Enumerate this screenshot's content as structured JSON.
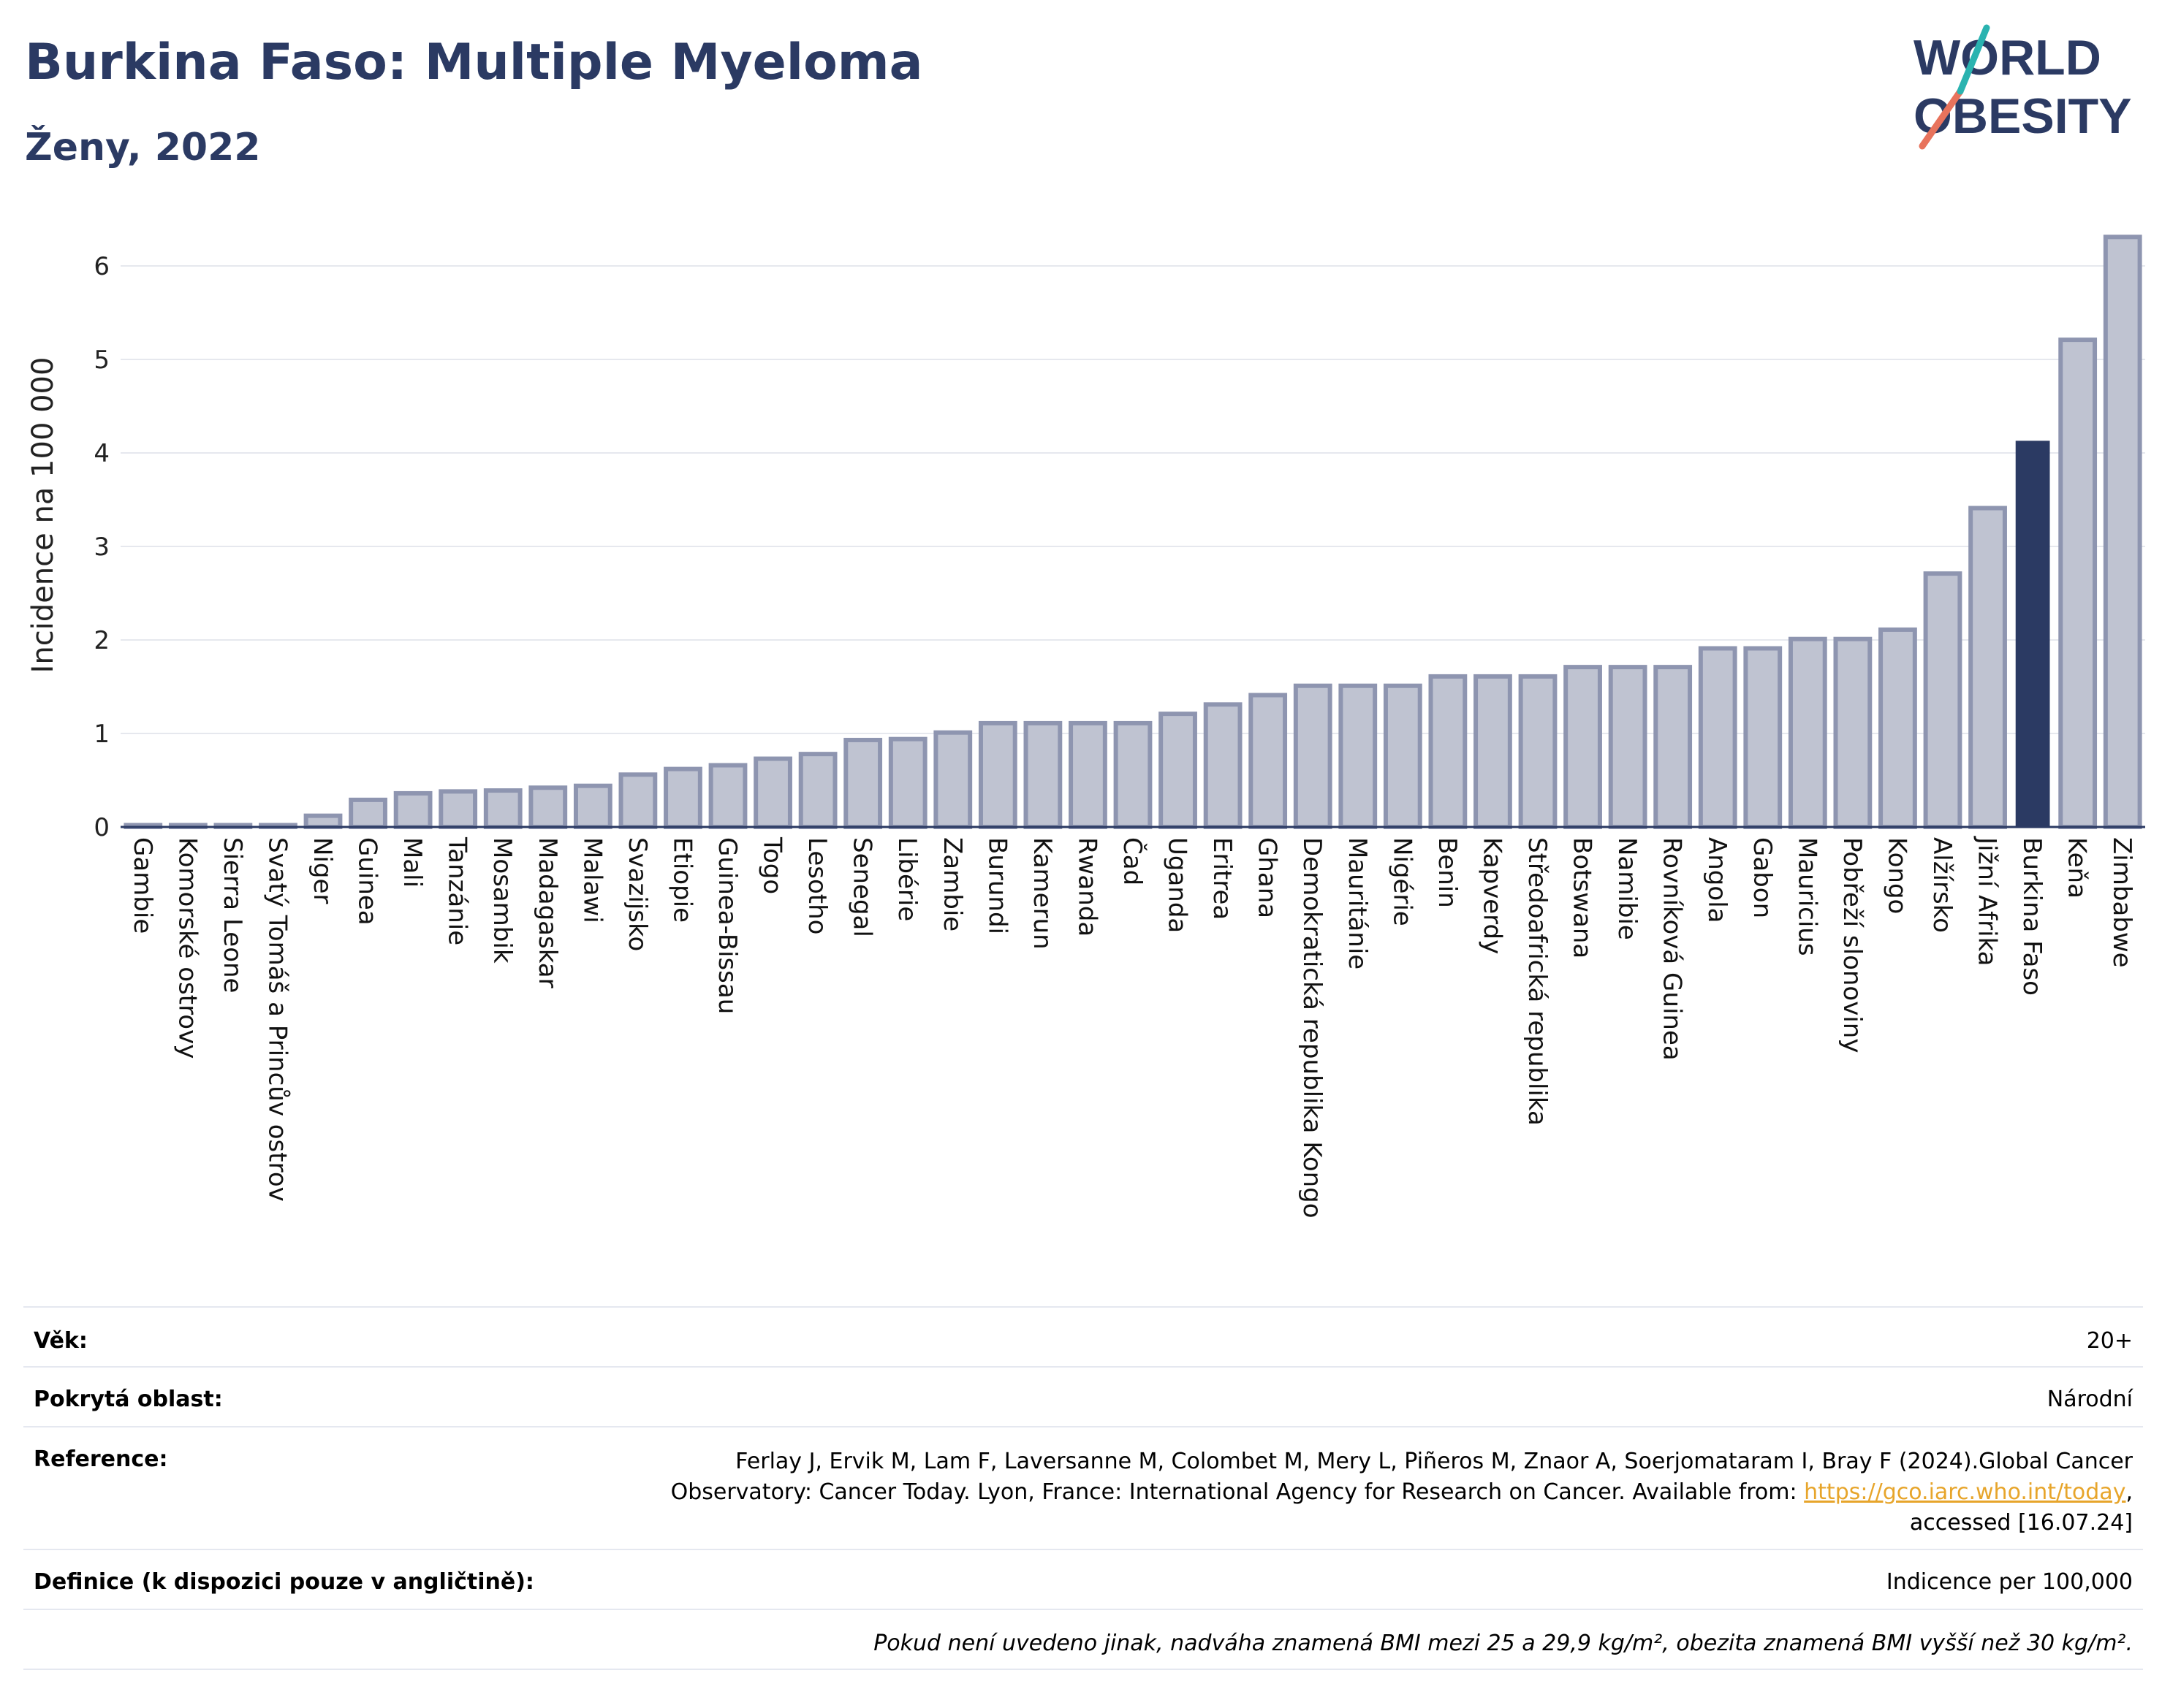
{
  "header": {
    "title": "Burkina Faso: Multiple Myeloma",
    "subtitle": "Ženy, 2022"
  },
  "logo": {
    "line1": "WORLD",
    "line2": "OBESITY"
  },
  "colors": {
    "bar": "#bfc3d1",
    "bar_stroke": "#8e95b0",
    "highlight": "#2b3a63",
    "grid": "#e6e8ee",
    "link": "#e7a52b"
  },
  "chart_data": {
    "type": "bar",
    "ylabel": "Incidence na 100 000",
    "ylim": [
      0,
      6.5
    ],
    "yticks": [
      0,
      1,
      2,
      3,
      4,
      5,
      6
    ],
    "grid": true,
    "highlight": "Burkina Faso",
    "categories": [
      "Gambie",
      "Komorské ostrovy",
      "Sierra Leone",
      "Svatý Tomáš a Princův ostrov",
      "Niger",
      "Guinea",
      "Mali",
      "Tanzánie",
      "Mosambik",
      "Madagaskar",
      "Malawi",
      "Svazijsko",
      "Etiopie",
      "Guinea-Bissau",
      "Togo",
      "Lesotho",
      "Senegal",
      "Libérie",
      "Zambie",
      "Burundi",
      "Kamerun",
      "Rwanda",
      "Čad",
      "Uganda",
      "Eritrea",
      "Ghana",
      "Demokratická republika Kongo",
      "Mauritánie",
      "Nigérie",
      "Benin",
      "Kapverdy",
      "Středoafrická republika",
      "Botswana",
      "Namibie",
      "Rovníková Guinea",
      "Angola",
      "Gabon",
      "Mauricius",
      "Pobřeží slonoviny",
      "Kongo",
      "Alžírsko",
      "Jižní Afrika",
      "Burkina Faso",
      "Keňa",
      "Zimbabwe"
    ],
    "values": [
      0.02,
      0.02,
      0.02,
      0.02,
      0.12,
      0.29,
      0.36,
      0.38,
      0.39,
      0.42,
      0.44,
      0.56,
      0.62,
      0.66,
      0.73,
      0.78,
      0.93,
      0.94,
      1.01,
      1.11,
      1.11,
      1.11,
      1.11,
      1.21,
      1.31,
      1.41,
      1.51,
      1.51,
      1.51,
      1.61,
      1.61,
      1.61,
      1.71,
      1.71,
      1.71,
      1.91,
      1.91,
      2.01,
      2.01,
      2.11,
      2.71,
      3.41,
      4.13,
      5.21,
      6.31
    ]
  },
  "info": {
    "age_label": "Věk:",
    "age_value": "20+",
    "area_label": "Pokrytá oblast:",
    "area_value": "Národní",
    "ref_label": "Reference:",
    "ref_text": "Ferlay J, Ervik M, Lam F, Laversanne M, Colombet M, Mery L, Piñeros M, Znaor A, Soerjomataram I, Bray F (2024).Global Cancer Observatory: Cancer Today. Lyon, France: International Agency for Research on Cancer. Available from: ",
    "ref_link": "https://gco.iarc.who.int/today",
    "ref_tail": ", accessed [16.07.24]",
    "def_label": "Definice (k dispozici pouze v angličtině):",
    "def_value": "Indicence per 100,000",
    "note": "Pokud není uvedeno jinak, nadváha znamená BMI mezi 25 a 29,9 kg/m², obezita znamená BMI vyšší než 30 kg/m²."
  }
}
